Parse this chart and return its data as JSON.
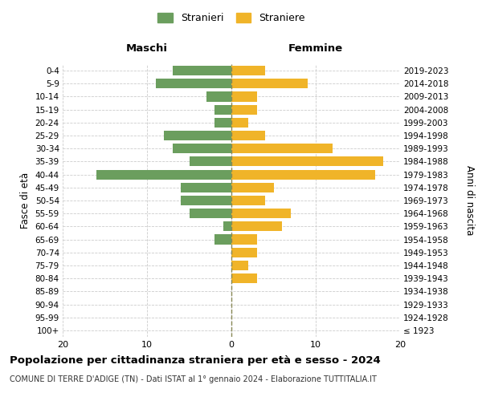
{
  "age_groups": [
    "100+",
    "95-99",
    "90-94",
    "85-89",
    "80-84",
    "75-79",
    "70-74",
    "65-69",
    "60-64",
    "55-59",
    "50-54",
    "45-49",
    "40-44",
    "35-39",
    "30-34",
    "25-29",
    "20-24",
    "15-19",
    "10-14",
    "5-9",
    "0-4"
  ],
  "birth_years": [
    "≤ 1923",
    "1924-1928",
    "1929-1933",
    "1934-1938",
    "1939-1943",
    "1944-1948",
    "1949-1953",
    "1954-1958",
    "1959-1963",
    "1964-1968",
    "1969-1973",
    "1974-1978",
    "1979-1983",
    "1984-1988",
    "1989-1993",
    "1994-1998",
    "1999-2003",
    "2004-2008",
    "2009-2013",
    "2014-2018",
    "2019-2023"
  ],
  "maschi": [
    0,
    0,
    0,
    0,
    0,
    0,
    0,
    2,
    1,
    5,
    6,
    6,
    16,
    5,
    7,
    8,
    2,
    2,
    3,
    9,
    7
  ],
  "femmine": [
    0,
    0,
    0,
    0,
    3,
    2,
    3,
    3,
    6,
    7,
    4,
    5,
    17,
    18,
    12,
    4,
    2,
    3,
    3,
    9,
    4
  ],
  "color_maschi": "#6b9e5e",
  "color_femmine": "#f0b429",
  "title": "Popolazione per cittadinanza straniera per età e sesso - 2024",
  "subtitle": "COMUNE DI TERRE D'ADIGE (TN) - Dati ISTAT al 1° gennaio 2024 - Elaborazione TUTTITALIA.IT",
  "ylabel_left": "Fasce di età",
  "ylabel_right": "Anni di nascita",
  "header_left": "Maschi",
  "header_right": "Femmine",
  "xlim": 20,
  "legend_maschi": "Stranieri",
  "legend_femmine": "Straniere",
  "bg_color": "#ffffff",
  "grid_color": "#cccccc",
  "bar_height": 0.75
}
